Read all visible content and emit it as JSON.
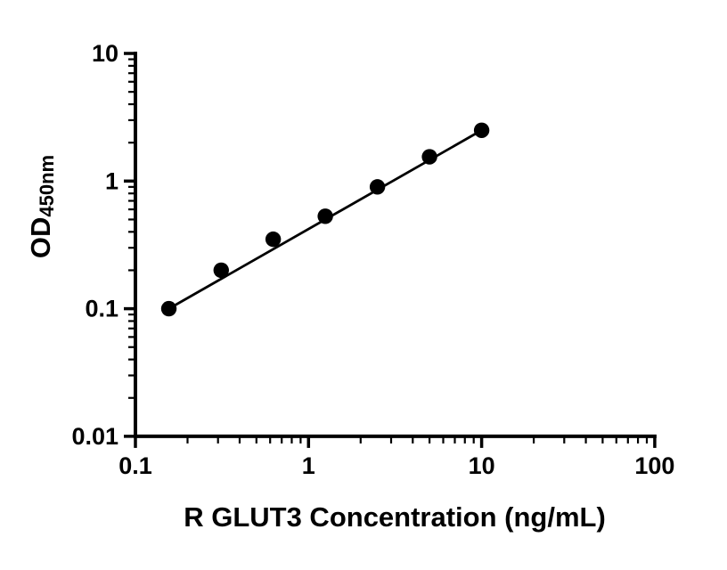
{
  "figure": {
    "background": "#ffffff"
  },
  "chart_data": {
    "type": "scatter",
    "title": "",
    "xlabel": "R GLUT3 Concentration (ng/mL)",
    "ylabel": "OD",
    "ylabel_sub": "450nm",
    "x_scale": "log",
    "y_scale": "log",
    "xlim": [
      0.1,
      100
    ],
    "ylim": [
      0.01,
      10
    ],
    "x_ticks": [
      0.1,
      1,
      10,
      100
    ],
    "x_tick_labels": [
      "0.1",
      "1",
      "10",
      "100"
    ],
    "y_ticks": [
      0.01,
      0.1,
      1,
      10
    ],
    "y_tick_labels": [
      "0.01",
      "0.1",
      "1",
      "10"
    ],
    "grid": false,
    "legend": "none",
    "marker_color": "#000000",
    "line_color": "#000000",
    "points": [
      {
        "x": 0.156,
        "y": 0.1
      },
      {
        "x": 0.313,
        "y": 0.2
      },
      {
        "x": 0.625,
        "y": 0.35
      },
      {
        "x": 1.25,
        "y": 0.53
      },
      {
        "x": 2.5,
        "y": 0.9
      },
      {
        "x": 5,
        "y": 1.55
      },
      {
        "x": 10,
        "y": 2.5
      }
    ],
    "fit_line": {
      "x1": 0.156,
      "y1": 0.1,
      "x2": 10,
      "y2": 2.5
    }
  }
}
